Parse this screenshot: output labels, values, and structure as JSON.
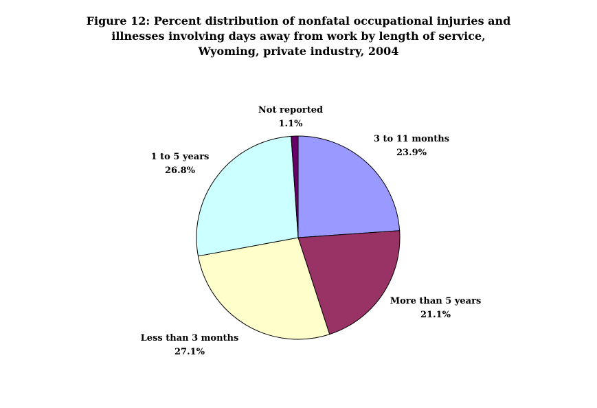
{
  "title_lines": [
    "Figure 12:  Percent distribution of nonfatal occupational injuries and",
    "illnesses involving days away from work by length of service,",
    "Wyoming, private industry, 2004"
  ],
  "chart_data": {
    "type": "pie",
    "title": "Figure 12:  Percent distribution of nonfatal occupational injuries and illnesses involving days away from work by length of service, Wyoming, private industry, 2004",
    "slices": [
      {
        "label": "3 to 11 months",
        "value": 23.9,
        "value_label": "23.9%",
        "color": "#9999ff"
      },
      {
        "label": "More than 5 years",
        "value": 21.1,
        "value_label": "21.1%",
        "color": "#993366"
      },
      {
        "label": "Less than 3 months",
        "value": 27.1,
        "value_label": "27.1%",
        "color": "#ffffcc"
      },
      {
        "label": "1 to 5 years",
        "value": 26.8,
        "value_label": "26.8%",
        "color": "#ccffff"
      },
      {
        "label": "Not reported",
        "value": 1.1,
        "value_label": "1.1%",
        "color": "#660066"
      }
    ],
    "start_angle_deg": 0,
    "direction": "clockwise",
    "legend": "none"
  }
}
